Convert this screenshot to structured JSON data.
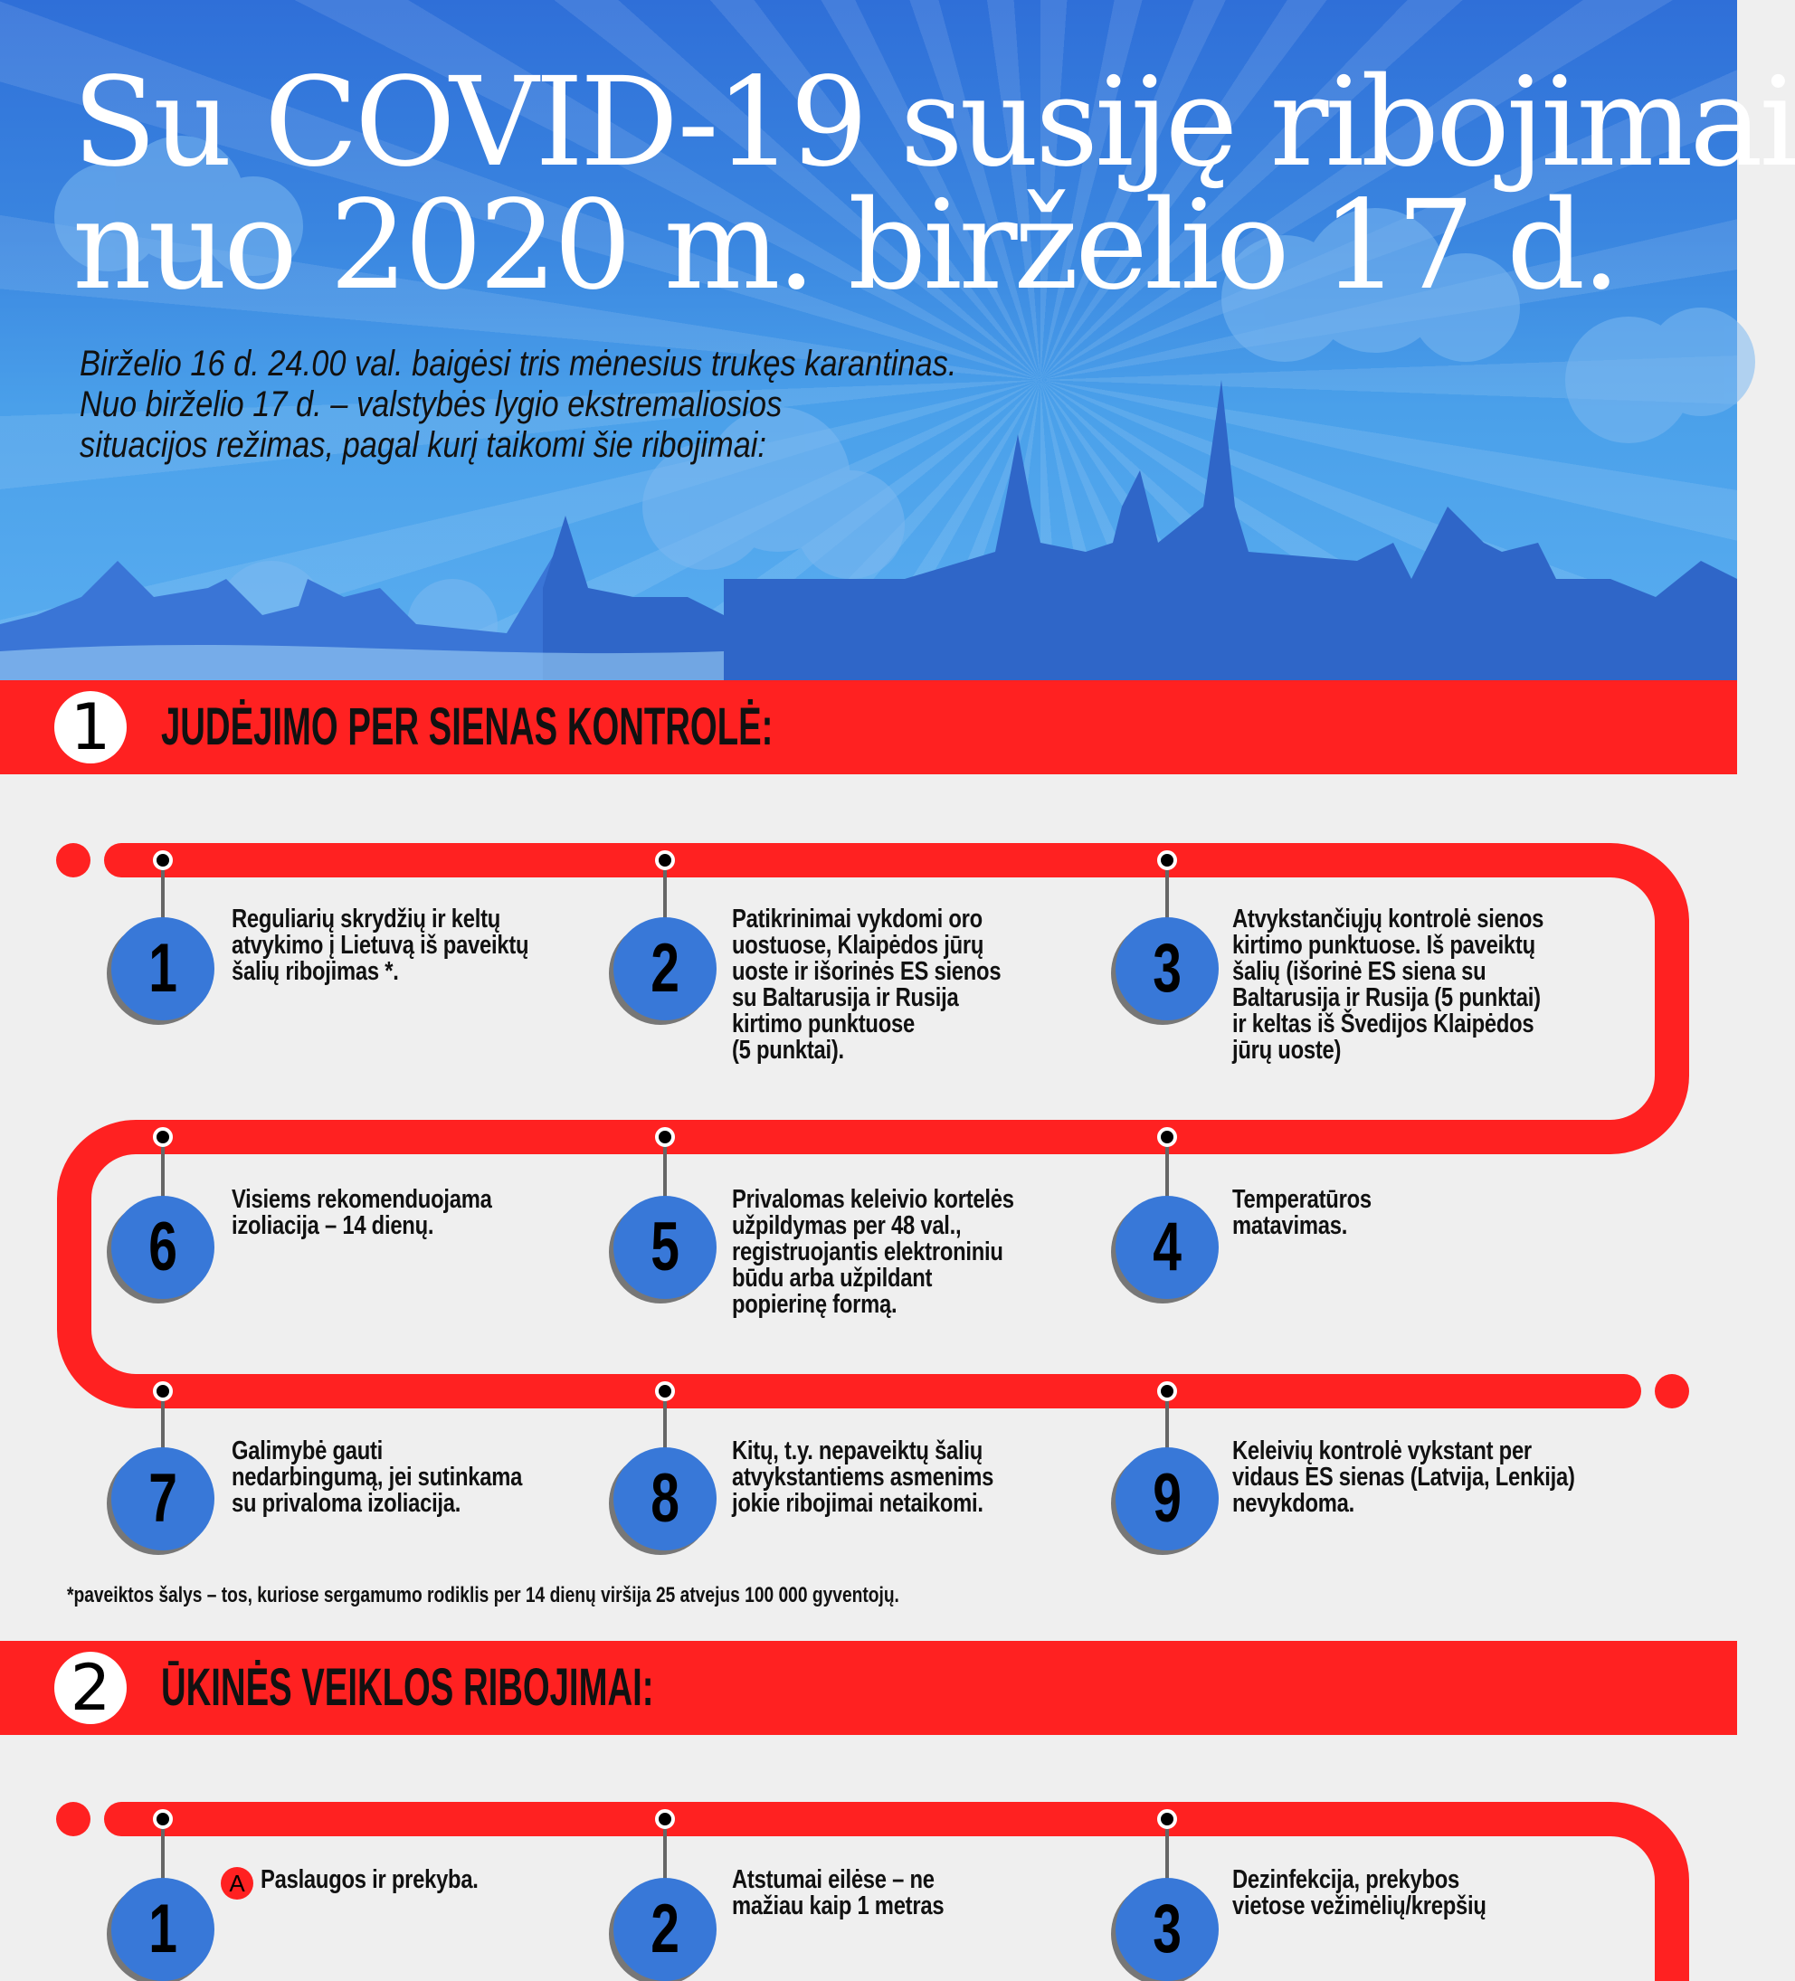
{
  "header": {
    "title_lines": [
      "Su COVID-19 susiję ribojimai",
      "nuo 2020 m. birželio 17 d."
    ],
    "subtitle_lines": [
      "Birželio 16 d. 24.00 val. baigėsi tris mėnesius trukęs karantinas.",
      "Nuo birželio 17 d. – valstybės lygio ekstremaliosios",
      "situacijos režimas, pagal kurį taikomi šie ribojimai:"
    ]
  },
  "section1": {
    "number": "1",
    "heading": "JUDĖJIMO PER SIENAS KONTROLĖ:",
    "items": [
      {
        "number": "1",
        "lines": [
          "Reguliarių skrydžių ir keltų",
          "atvykimo į Lietuvą iš paveiktų",
          "šalių ribojimas *."
        ]
      },
      {
        "number": "2",
        "lines": [
          "Patikrinimai vykdomi oro",
          "uostuose, Klaipėdos jūrų",
          "uoste ir išorinės ES sienos",
          "su Baltarusija ir Rusija",
          "kirtimo punktuose",
          "(5 punktai)."
        ]
      },
      {
        "number": "3",
        "lines": [
          "Atvykstančiųjų kontrolė sienos",
          "kirtimo punktuose. Iš paveiktų",
          "šalių (išorinė ES siena su",
          "Baltarusija ir Rusija (5 punktai)",
          "ir keltas iš Švedijos Klaipėdos",
          "jūrų uoste)"
        ]
      },
      {
        "number": "4",
        "lines": [
          "Temperatūros",
          "matavimas."
        ]
      },
      {
        "number": "5",
        "lines": [
          "Privalomas keleivio kortelės",
          "užpildymas per 48 val.,",
          "registruojantis elektroniniu",
          "būdu arba užpildant",
          "popierinę formą."
        ]
      },
      {
        "number": "6",
        "lines": [
          "Visiems rekomenduojama",
          "izoliacija – 14 dienų."
        ]
      },
      {
        "number": "7",
        "lines": [
          "Galimybė gauti",
          "nedarbingumą, jei sutinkama",
          "su privaloma izoliacija."
        ]
      },
      {
        "number": "8",
        "lines": [
          "Kitų, t.y. nepaveiktų šalių",
          "atvykstantiems asmenims",
          "jokie ribojimai netaikomi."
        ]
      },
      {
        "number": "9",
        "lines": [
          "Keleivių kontrolė vykstant per",
          "vidaus ES sienas (Latvija, Lenkija)",
          "nevykdoma."
        ]
      }
    ],
    "footnote": "*paveiktos šalys – tos, kuriose sergamumo rodiklis per 14 dienų viršija 25 atvejus 100 000 gyventojų."
  },
  "section2": {
    "number": "2",
    "heading": "ŪKINĖS VEIKLOS RIBOJIMAI:",
    "subsection_tag": "A",
    "items": [
      {
        "number": "1",
        "lines": [
          "Paslaugos ir prekyba."
        ]
      },
      {
        "number": "2",
        "lines": [
          "Atstumai eilėse – ne",
          "mažiau kaip 1 metras"
        ]
      },
      {
        "number": "3",
        "lines": [
          "Dezinfekcija, prekybos",
          "vietose vežimėlių/krepšių"
        ]
      }
    ]
  },
  "colors": {
    "accent_red": "#ff2121",
    "badge_blue": "#3878d8",
    "sky_blue": "#3a86e0",
    "background": "#efefef"
  }
}
